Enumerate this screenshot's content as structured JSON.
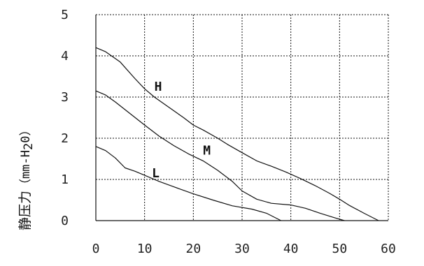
{
  "chart_data": {
    "type": "line",
    "ylabel_main": "静压力",
    "ylabel_unit_parts": [
      "（mm-H",
      "2",
      "0）"
    ],
    "xlim": [
      0,
      60
    ],
    "ylim": [
      0,
      5
    ],
    "x_ticks": [
      "0",
      "10",
      "20",
      "30",
      "40",
      "50",
      "60"
    ],
    "y_ticks": [
      "0",
      "1",
      "2",
      "3",
      "4",
      "5"
    ],
    "grid": true,
    "series": [
      {
        "name": "H",
        "label_at": [
          12,
          3.15
        ],
        "x": [
          0,
          2,
          5,
          8,
          10,
          12,
          15,
          18,
          20,
          22,
          25,
          27,
          30,
          33,
          36,
          39,
          42,
          45,
          48,
          50,
          52,
          55,
          58
        ],
        "y": [
          4.2,
          4.1,
          3.85,
          3.45,
          3.2,
          3.0,
          2.75,
          2.5,
          2.32,
          2.2,
          2.0,
          1.85,
          1.65,
          1.45,
          1.32,
          1.18,
          1.02,
          0.85,
          0.66,
          0.52,
          0.37,
          0.18,
          0.0
        ]
      },
      {
        "name": "M",
        "label_at": [
          22,
          1.6
        ],
        "x": [
          0,
          2,
          4,
          7,
          10,
          13,
          16,
          19,
          22,
          25,
          28,
          30,
          33,
          36,
          40,
          43,
          46,
          49,
          51
        ],
        "y": [
          3.15,
          3.05,
          2.88,
          2.6,
          2.32,
          2.05,
          1.82,
          1.62,
          1.45,
          1.22,
          0.95,
          0.72,
          0.52,
          0.42,
          0.38,
          0.3,
          0.18,
          0.07,
          0.0
        ]
      },
      {
        "name": "L",
        "label_at": [
          11.5,
          1.05
        ],
        "x": [
          0,
          2,
          4,
          6,
          8,
          10,
          13,
          16,
          20,
          24,
          28,
          32,
          35,
          37,
          38
        ],
        "y": [
          1.8,
          1.7,
          1.52,
          1.28,
          1.2,
          1.1,
          0.95,
          0.82,
          0.65,
          0.5,
          0.36,
          0.28,
          0.18,
          0.06,
          0.0
        ]
      }
    ]
  }
}
